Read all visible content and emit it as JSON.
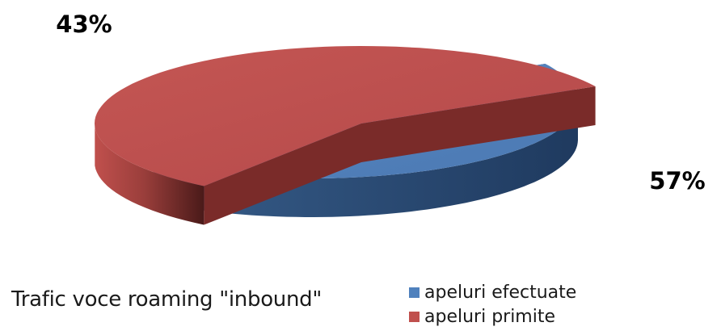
{
  "chart_data": {
    "type": "pie",
    "style": "3d-exploded",
    "title": "Trafic voce roaming \"inbound\"",
    "slices": [
      {
        "label": "apeluri efectuate",
        "value": 43,
        "value_label": "43%",
        "color": "#4f81bd"
      },
      {
        "label": "apeluri primite",
        "value": 57,
        "value_label": "57%",
        "color": "#c0504d"
      }
    ],
    "legend_position": "bottom-right"
  }
}
